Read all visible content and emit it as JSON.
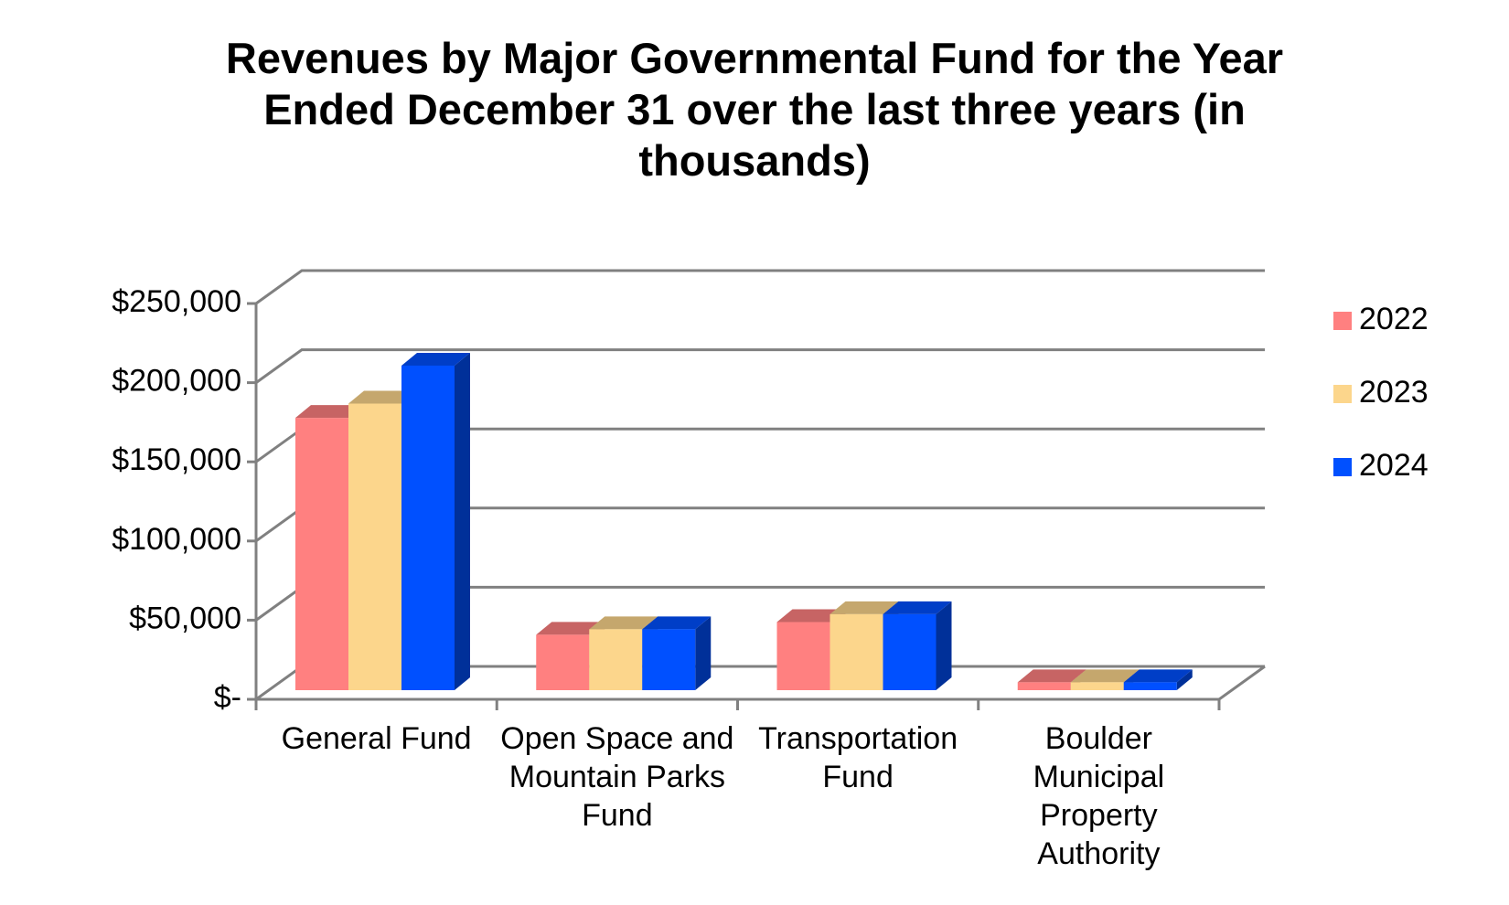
{
  "chart_data": {
    "type": "bar3d",
    "title": "Revenues by Major Governmental Fund for the Year Ended December 31 over the last three years (in thousands)",
    "categories": [
      "General Fund",
      "Open Space and Mountain Parks Fund",
      "Transportation Fund",
      "Boulder Municipal Property Authority"
    ],
    "series": [
      {
        "name": "2022",
        "color": "#ff8080",
        "values": [
          172000,
          35000,
          43000,
          5000
        ]
      },
      {
        "name": "2023",
        "color": "#fcd68c",
        "values": [
          181000,
          38500,
          48000,
          5000
        ]
      },
      {
        "name": "2024",
        "color": "#0050ff",
        "values": [
          205000,
          38500,
          48000,
          5000
        ]
      }
    ],
    "ylim": [
      0,
      250000
    ],
    "yticks": [
      {
        "value": 0,
        "label": "$-"
      },
      {
        "value": 50000,
        "label": "$50,000"
      },
      {
        "value": 100000,
        "label": "$100,000"
      },
      {
        "value": 150000,
        "label": "$150,000"
      },
      {
        "value": 200000,
        "label": "$200,000"
      },
      {
        "value": 250000,
        "label": "$250,000"
      }
    ],
    "grid": true,
    "legend": "right"
  }
}
